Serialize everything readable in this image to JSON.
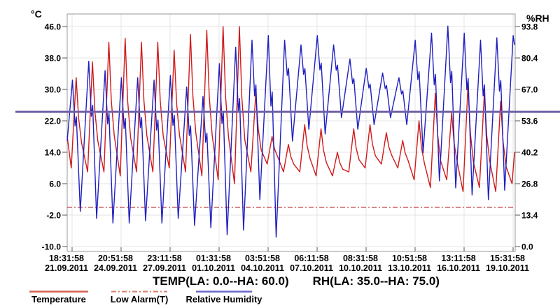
{
  "axes": {
    "left_unit": "°C",
    "right_unit": "%RH"
  },
  "chart_data": {
    "type": "line",
    "title": "",
    "grid": true,
    "x_axis": {
      "ticks": [
        {
          "time": "18:31:58",
          "date": "21.09.2011"
        },
        {
          "time": "20:51:58",
          "date": "24.09.2011"
        },
        {
          "time": "23:11:58",
          "date": "27.09.2011"
        },
        {
          "time": "01:31:58",
          "date": "01.10.2011"
        },
        {
          "time": "03:51:58",
          "date": "04.10.2011"
        },
        {
          "time": "06:11:58",
          "date": "07.10.2011"
        },
        {
          "time": "08:31:58",
          "date": "10.10.2011"
        },
        {
          "time": "10:51:58",
          "date": "13.10.2011"
        },
        {
          "time": "13:11:58",
          "date": "16.10.2011"
        },
        {
          "time": "15:31:58",
          "date": "19.10.2011"
        }
      ]
    },
    "temp_axis": {
      "unit": "°C",
      "ticks": [
        46.0,
        38.0,
        30.0,
        22.0,
        14.0,
        6.0,
        -2.0,
        -10.0
      ]
    },
    "rh_axis": {
      "unit": "%RH",
      "ticks": [
        93.8,
        80.4,
        67.0,
        53.6,
        40.2,
        26.8,
        13.4,
        0.0
      ]
    },
    "series": [
      {
        "name": "Temperature",
        "axis": "temp",
        "color": "#d01a1a",
        "daily_max": [
          33,
          37,
          42,
          43,
          42,
          42,
          40,
          44,
          45,
          46,
          46,
          29,
          18,
          16,
          21,
          20,
          14,
          20,
          21,
          19,
          17,
          22,
          29,
          24,
          31,
          29,
          27,
          30
        ],
        "daily_min": [
          10,
          9,
          9,
          8,
          9,
          9,
          10,
          9,
          8,
          7,
          6,
          9,
          11,
          9,
          9,
          8,
          8,
          9,
          10,
          11,
          10,
          7,
          5,
          7,
          4,
          5,
          4,
          6
        ],
        "start_value": 18,
        "end_value": 14
      },
      {
        "name": "Relative Humidity",
        "axis": "rh",
        "color": "#1f1fc0",
        "daily_max": [
          71,
          79,
          75,
          72,
          72,
          71,
          73,
          68,
          64,
          78,
          85,
          88,
          90,
          88,
          86,
          90,
          86,
          80,
          76,
          74,
          72,
          88,
          91,
          94,
          91,
          88,
          89,
          90
        ],
        "daily_min": [
          15,
          12,
          10,
          10,
          11,
          10,
          12,
          9,
          8,
          5,
          7,
          20,
          4,
          45,
          50,
          48,
          55,
          50,
          52,
          55,
          52,
          40,
          28,
          25,
          22,
          20,
          24,
          20
        ],
        "start_value": 45,
        "end_value": 86
      }
    ],
    "alarm_line": {
      "name": "Low Alarm(T)",
      "axis": "temp",
      "value": 0.0,
      "color": "#c03030"
    },
    "marker_line": {
      "temp_value": 24.3,
      "rh_value": 57.5,
      "color": "#6f60a8"
    }
  },
  "footer": {
    "temp_summary": "TEMP(LA: 0.0--HA: 60.0)",
    "rh_summary": "RH(LA: 35.0--HA: 75.0)"
  },
  "legend": [
    {
      "label": "Temperature",
      "color": "#d9604f",
      "style": "solid"
    },
    {
      "label": "Low Alarm(T)",
      "color": "#d97a6a",
      "style": "dashdot"
    },
    {
      "label": "Relative Humidity",
      "color": "#6868cc",
      "style": "solid"
    }
  ]
}
